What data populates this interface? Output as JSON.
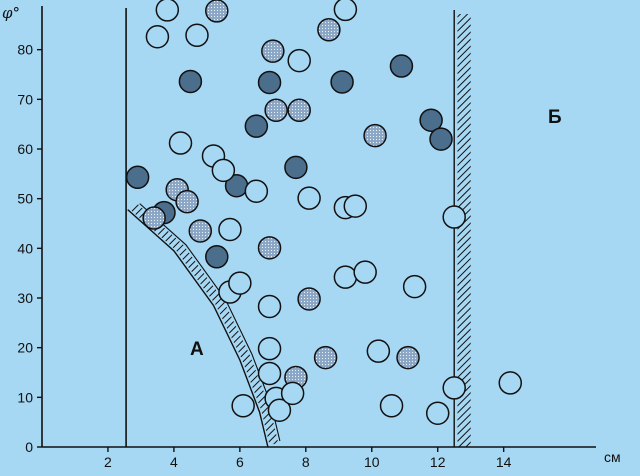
{
  "chart_data": {
    "type": "scatter",
    "xlabel": "см",
    "ylabel": "φ°",
    "xlim": [
      0,
      16.8
    ],
    "ylim": [
      0,
      90
    ],
    "x_ticks": [
      "2",
      "4",
      "6",
      "8",
      "10",
      "12",
      "14"
    ],
    "y_ticks": [
      "0",
      "10",
      "20",
      "30",
      "40",
      "50",
      "60",
      "70",
      "80"
    ],
    "region_labels": [
      "А",
      "Б"
    ],
    "fill_colors": {
      "dark": "#4b6e8c",
      "dotted": "#8aa6c4",
      "open": "#a6d8f4"
    },
    "series": [
      {
        "fill": "dark",
        "points": [
          [
            2.9,
            54.3
          ],
          [
            3.7,
            47.2
          ],
          [
            4.5,
            73.6
          ],
          [
            5.3,
            38.3
          ],
          [
            5.9,
            52.6
          ],
          [
            6.5,
            64.6
          ],
          [
            6.9,
            73.4
          ],
          [
            7.7,
            56.3
          ],
          [
            9.1,
            73.5
          ],
          [
            10.9,
            76.7
          ],
          [
            11.8,
            65.8
          ],
          [
            12.1,
            62.0
          ]
        ]
      },
      {
        "fill": "dotted",
        "points": [
          [
            3.4,
            46.1
          ],
          [
            4.1,
            51.8
          ],
          [
            4.4,
            49.4
          ],
          [
            4.8,
            43.5
          ],
          [
            5.3,
            87.8
          ],
          [
            7.0,
            79.7
          ],
          [
            7.1,
            67.8
          ],
          [
            7.8,
            67.8
          ],
          [
            6.9,
            40.1
          ],
          [
            8.1,
            29.8
          ],
          [
            7.7,
            14.0
          ],
          [
            8.6,
            18.0
          ],
          [
            8.7,
            84.0
          ],
          [
            10.1,
            62.7
          ],
          [
            11.1,
            18.0
          ]
        ]
      },
      {
        "fill": "open",
        "points": [
          [
            3.8,
            88.0
          ],
          [
            3.5,
            82.6
          ],
          [
            4.7,
            82.9
          ],
          [
            4.2,
            61.2
          ],
          [
            5.2,
            58.6
          ],
          [
            5.5,
            55.7
          ],
          [
            5.7,
            43.8
          ],
          [
            5.7,
            31.2
          ],
          [
            6.0,
            33.0
          ],
          [
            6.5,
            51.5
          ],
          [
            6.9,
            28.3
          ],
          [
            6.9,
            19.8
          ],
          [
            6.9,
            14.8
          ],
          [
            7.1,
            9.8
          ],
          [
            7.2,
            7.4
          ],
          [
            7.6,
            10.8
          ],
          [
            6.1,
            8.3
          ],
          [
            7.8,
            77.8
          ],
          [
            8.1,
            50.1
          ],
          [
            9.2,
            88.1
          ],
          [
            9.2,
            48.2
          ],
          [
            9.5,
            48.5
          ],
          [
            9.2,
            34.2
          ],
          [
            9.8,
            35.2
          ],
          [
            10.2,
            19.3
          ],
          [
            10.6,
            8.3
          ],
          [
            11.3,
            32.3
          ],
          [
            12.0,
            6.8
          ],
          [
            12.5,
            46.3
          ],
          [
            12.5,
            11.9
          ],
          [
            14.2,
            12.9
          ]
        ]
      }
    ],
    "boundaries": {
      "left_line_x": 2.55,
      "curve_A": [
        [
          2.6,
          47.8
        ],
        [
          4.0,
          39.5
        ],
        [
          5.2,
          28.5
        ],
        [
          6.0,
          17.5
        ],
        [
          6.6,
          7.0
        ],
        [
          6.85,
          0.0
        ]
      ],
      "right_line_x": 12.5,
      "hatch_band_B": [
        12.6,
        13.0
      ]
    }
  }
}
